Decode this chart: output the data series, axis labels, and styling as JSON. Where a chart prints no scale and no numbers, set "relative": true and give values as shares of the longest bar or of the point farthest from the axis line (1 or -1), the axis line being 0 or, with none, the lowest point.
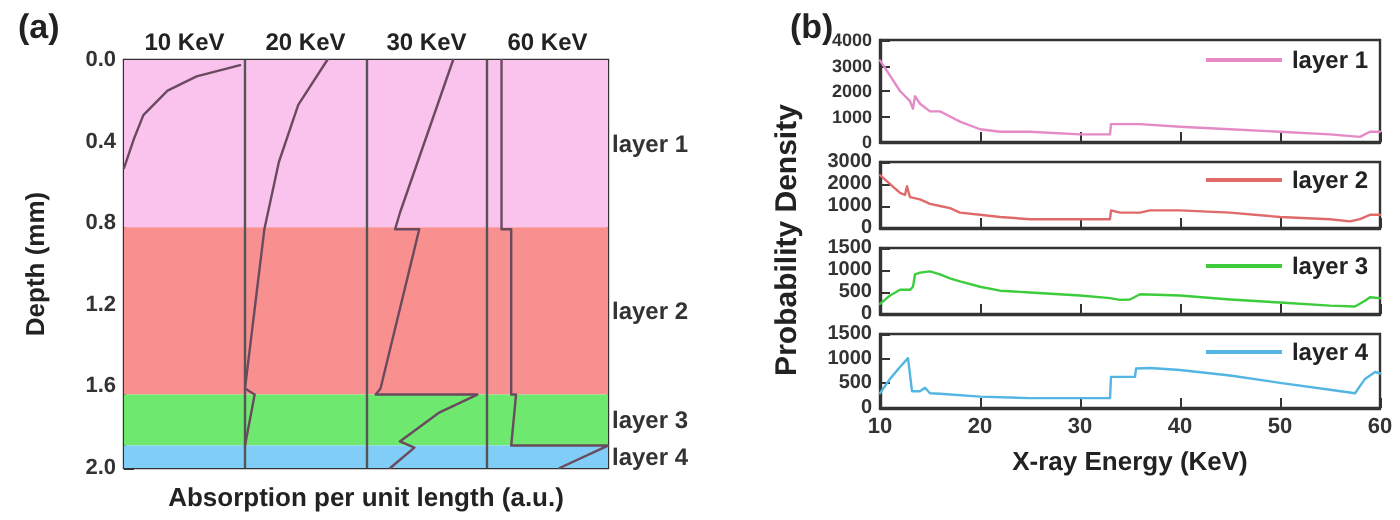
{
  "chart_data": [
    {
      "type": "line",
      "title": "(a)",
      "xlabel": "Absorption per unit length (a.u.)",
      "ylabel": "Depth (mm)",
      "orientation": "horizontal",
      "relative": true,
      "ylim": [
        2.0,
        0
      ],
      "yticks": [
        {
          "value": 0,
          "label": "0.0"
        },
        {
          "value": 0.4,
          "label": "0.4"
        },
        {
          "value": 0.8,
          "label": "0.8"
        },
        {
          "value": 1.2,
          "label": "1.2"
        },
        {
          "value": 1.6,
          "label": "1.6"
        },
        {
          "value": 2.0,
          "label": "2.0"
        }
      ],
      "tick_labels": "y",
      "marker": "none",
      "bands": [
        {
          "axis": "y",
          "from": 0,
          "to": 0.82,
          "label": "layer 1",
          "color": "#f9c3ee"
        },
        {
          "axis": "y",
          "from": 0.82,
          "to": 1.64,
          "label": "layer 2",
          "color": "#f99090"
        },
        {
          "axis": "y",
          "from": 1.64,
          "to": 1.89,
          "label": "layer 3",
          "color": "#6ee86e"
        },
        {
          "axis": "y",
          "from": 1.89,
          "to": 2.0,
          "label": "layer 4",
          "color": "#80cdf7"
        }
      ],
      "ref_lines": [
        {
          "axis": "x",
          "value": 0.25,
          "color": "#555555"
        },
        {
          "axis": "x",
          "value": 0.5,
          "color": "#555555"
        },
        {
          "axis": "x",
          "value": 0.75,
          "color": "#555555"
        }
      ],
      "series": [
        {
          "name": "10 KeV",
          "color": "#6a4a5e",
          "x": [
            0.025,
            0.08,
            0.15,
            0.27,
            0.39,
            0.53
          ],
          "values": [
            0.24,
            0.15,
            0.09,
            0.04,
            0.02,
            0.0
          ]
        },
        {
          "name": "20 KeV",
          "color": "#6a4a5e",
          "x": [
            0,
            0.22,
            0.5,
            0.83,
            1.61,
            1.64,
            1.89
          ],
          "values": [
            0.42,
            0.36,
            0.32,
            0.29,
            0.25,
            0.27,
            0.25
          ]
        },
        {
          "name": "30 KeV",
          "color": "#6a4a5e",
          "x": [
            0,
            0.75,
            0.83,
            0.83,
            1.61,
            1.64,
            1.64,
            1.73,
            1.87,
            1.9,
            2.0
          ],
          "values": [
            0.68,
            0.57,
            0.56,
            0.61,
            0.53,
            0.52,
            0.73,
            0.65,
            0.57,
            0.6,
            0.55
          ]
        },
        {
          "name": "60 KeV",
          "color": "#6a4a5e",
          "x": [
            0,
            0.83,
            0.83,
            1.64,
            1.64,
            1.89,
            1.89,
            2.0
          ],
          "values": [
            0.78,
            0.78,
            0.8,
            0.8,
            0.81,
            0.8,
            1,
            0.9
          ]
        }
      ]
    },
    {
      "type": "line",
      "title": "(b)",
      "xlim": [
        10,
        60
      ],
      "xticks": [
        10,
        20,
        30,
        40,
        50,
        60
      ],
      "ylim": [
        0,
        4000
      ],
      "yticks": [
        0,
        1000,
        2000,
        3000,
        4000
      ],
      "tick_labels": "y",
      "marker": "none",
      "legend": "top right",
      "series": [
        {
          "name": "layer 1",
          "color": "#e58ac6",
          "x": [
            10,
            11,
            12,
            13,
            13.3,
            13.5,
            14,
            15,
            16,
            17,
            18,
            20,
            22,
            25,
            30,
            33,
            33.1,
            36,
            40,
            45,
            50,
            55,
            58,
            59,
            60
          ],
          "values": [
            3200,
            2600,
            2000,
            1600,
            1300,
            1800,
            1500,
            1200,
            1200,
            1000,
            800,
            500,
            400,
            400,
            300,
            300,
            700,
            700,
            600,
            500,
            400,
            300,
            200,
            400,
            400
          ]
        }
      ]
    },
    {
      "type": "line",
      "ylabel": "Probability Density",
      "xlim": [
        10,
        60
      ],
      "xticks": [
        10,
        20,
        30,
        40,
        50,
        60
      ],
      "ylim": [
        0,
        3000
      ],
      "yticks": [
        0,
        1000,
        2000,
        3000
      ],
      "tick_labels": "y",
      "marker": "none",
      "legend": "top right",
      "series": [
        {
          "name": "layer 2",
          "color": "#e06a6a",
          "x": [
            10,
            12,
            12.5,
            12.7,
            13,
            14,
            15,
            16,
            17,
            18,
            20,
            22,
            25,
            30,
            33,
            33.1,
            34,
            36,
            37,
            40,
            45,
            50,
            55,
            57,
            58,
            59,
            60
          ],
          "values": [
            2400,
            1600,
            1500,
            1900,
            1400,
            1300,
            1100,
            1000,
            900,
            700,
            600,
            500,
            400,
            400,
            400,
            800,
            700,
            700,
            800,
            800,
            700,
            500,
            400,
            300,
            400,
            600,
            600
          ]
        }
      ]
    },
    {
      "type": "line",
      "xlim": [
        10,
        60
      ],
      "xticks": [
        10,
        20,
        30,
        40,
        50,
        60
      ],
      "ylim": [
        0,
        1500
      ],
      "yticks": [
        0,
        500,
        1000,
        1500
      ],
      "tick_labels": "y",
      "marker": "none",
      "legend": "top right",
      "series": [
        {
          "name": "layer 3",
          "color": "#3ccc3c",
          "x": [
            10,
            11,
            12,
            13,
            13.3,
            13.5,
            14,
            15,
            16,
            17,
            18,
            20,
            22,
            25,
            30,
            33,
            34,
            35,
            36,
            40,
            45,
            50,
            55,
            57.5,
            58.5,
            59,
            60
          ],
          "values": [
            230,
            420,
            550,
            550,
            620,
            900,
            940,
            970,
            900,
            810,
            740,
            620,
            530,
            490,
            420,
            360,
            320,
            330,
            450,
            420,
            330,
            260,
            190,
            170,
            300,
            380,
            360
          ]
        }
      ]
    },
    {
      "type": "line",
      "xlabel": "X-ray Energy (KeV)",
      "xlim": [
        10,
        60
      ],
      "xticks": [
        10,
        20,
        30,
        40,
        50,
        60
      ],
      "ylim": [
        0,
        1500
      ],
      "yticks": [
        0,
        500,
        1000,
        1500
      ],
      "marker": "none",
      "legend": "top right",
      "series": [
        {
          "name": "layer 4",
          "color": "#52b5e2",
          "x": [
            10,
            11,
            12,
            12.8,
            13.2,
            14,
            14.5,
            15,
            16,
            20,
            25,
            30,
            33,
            33.1,
            35.5,
            35.6,
            37,
            40,
            45,
            50,
            55,
            57.5,
            58.5,
            59.5,
            60
          ],
          "values": [
            300,
            590,
            830,
            1010,
            340,
            340,
            410,
            300,
            290,
            230,
            200,
            200,
            200,
            630,
            630,
            800,
            810,
            770,
            660,
            510,
            370,
            300,
            590,
            730,
            700
          ]
        }
      ]
    }
  ]
}
